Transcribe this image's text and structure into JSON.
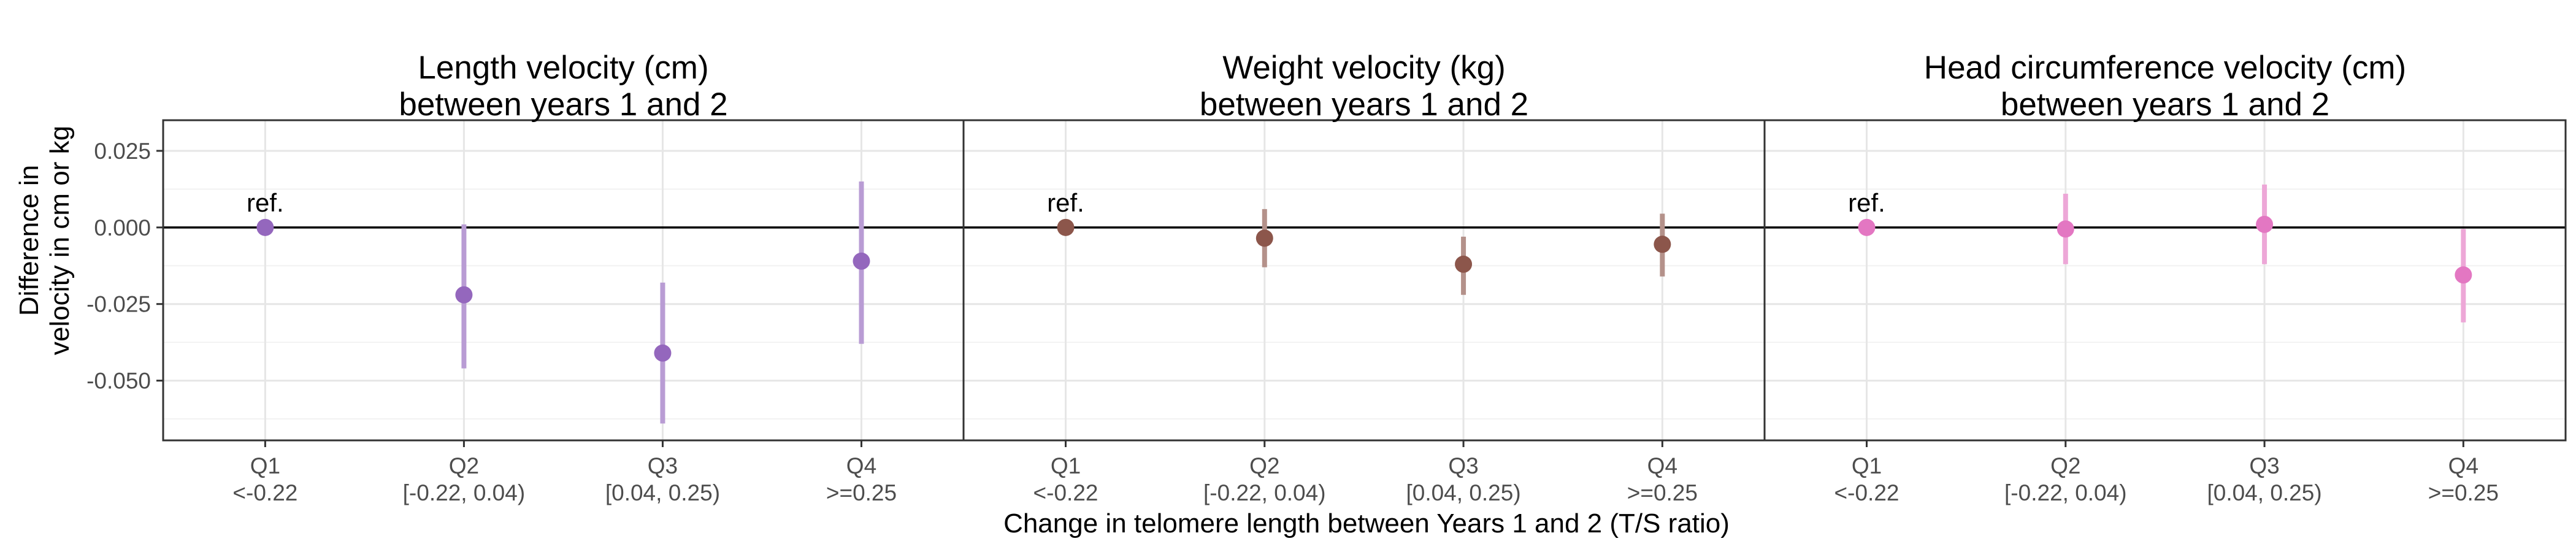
{
  "figure": {
    "ylabel_line1": "Difference in",
    "ylabel_line2": "velocity in cm or kg",
    "xlabel": "Change in telomere length between Years 1 and 2 (T/S ratio)",
    "ref_label": "ref."
  },
  "chart_data": [
    {
      "type": "scatter",
      "title_line1": "Length velocity (cm)",
      "title_line2": "between years 1 and 2",
      "color": "#9467bd",
      "categories": [
        "Q1",
        "Q2",
        "Q3",
        "Q4"
      ],
      "category_ranges": [
        "<-0.22",
        "[-0.22, 0.04)",
        "[0.04, 0.25)",
        ">=0.25"
      ],
      "estimates": [
        0.0,
        -0.022,
        -0.041,
        -0.011
      ],
      "ci_lower": [
        null,
        -0.046,
        -0.064,
        -0.038
      ],
      "ci_upper": [
        null,
        0.001,
        -0.018,
        0.015
      ],
      "ylim": [
        -0.0695,
        0.035
      ],
      "yticks": [
        0.025,
        0.0,
        -0.025,
        -0.05
      ],
      "ytick_labels": [
        "0.025",
        "0.000",
        "-0.025",
        "-0.050"
      ],
      "grid": true,
      "reference_line": 0
    },
    {
      "type": "scatter",
      "title_line1": "Weight velocity (kg)",
      "title_line2": "between years 1 and 2",
      "color": "#8c564b",
      "categories": [
        "Q1",
        "Q2",
        "Q3",
        "Q4"
      ],
      "category_ranges": [
        "<-0.22",
        "[-0.22, 0.04)",
        "[0.04, 0.25)",
        ">=0.25"
      ],
      "estimates": [
        0.0,
        -0.0035,
        -0.012,
        -0.0055
      ],
      "ci_lower": [
        null,
        -0.013,
        -0.022,
        -0.016
      ],
      "ci_upper": [
        null,
        0.006,
        -0.003,
        0.0045
      ],
      "ylim": [
        -0.0695,
        0.035
      ],
      "grid": true,
      "reference_line": 0
    },
    {
      "type": "scatter",
      "title_line1": "Head circumference velocity (cm)",
      "title_line2": "between years 1 and 2",
      "color": "#e377c2",
      "categories": [
        "Q1",
        "Q2",
        "Q3",
        "Q4"
      ],
      "category_ranges": [
        "<-0.22",
        "[-0.22, 0.04)",
        "[0.04, 0.25)",
        ">=0.25"
      ],
      "estimates": [
        0.0,
        -0.0005,
        0.001,
        -0.0155
      ],
      "ci_lower": [
        null,
        -0.012,
        -0.012,
        -0.031
      ],
      "ci_upper": [
        null,
        0.011,
        0.014,
        -0.0005
      ],
      "ylim": [
        -0.0695,
        0.035
      ],
      "grid": true,
      "reference_line": 0
    }
  ]
}
